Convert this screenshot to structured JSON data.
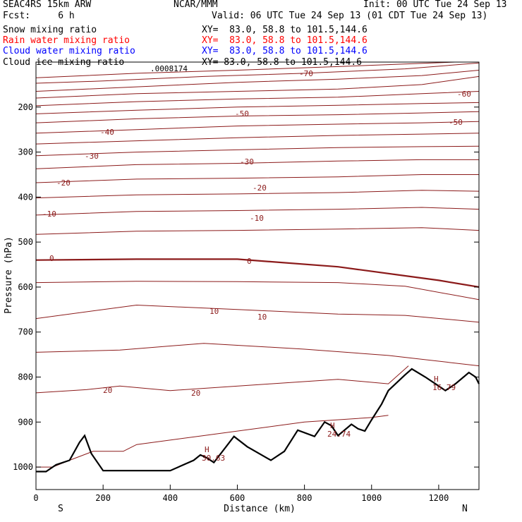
{
  "header": {
    "title": "SEAC4RS 15km ARW",
    "forecast": "Fcst:     6 h",
    "org": "NCAR/MMM",
    "init": "Init: 00 UTC Tue 24 Sep 13",
    "valid": "Valid: 06 UTC Tue 24 Sep 13 (01 CDT Tue 24 Sep 13)"
  },
  "legend": [
    {
      "label": "Snow mixing ratio",
      "xy": "XY=  83.0, 58.8 to 101.5,144.6",
      "color": "#000000"
    },
    {
      "label": "Rain water mixing ratio",
      "xy": "XY=  83.0, 58.8 to 101.5,144.6",
      "color": "#ff0000"
    },
    {
      "label": "Cloud water mixing ratio",
      "xy": "XY=  83.0, 58.8 to 101.5,144.6",
      "color": "#0000ff"
    },
    {
      "label": "Cloud ice mixing ratio",
      "xy": "XY=  83.0, 58.8 to 101.5,144.6",
      "color": "#000000"
    }
  ],
  "chart_data": {
    "type": "line",
    "xlabel": "Distance (km)",
    "ylabel": "Pressure (hPa)",
    "xlim": [
      0,
      1320
    ],
    "ylim": [
      1050,
      100
    ],
    "x_ticks": [
      "0",
      "200",
      "400",
      "600",
      "800",
      "1000",
      "1200"
    ],
    "y_ticks": [
      "200",
      "300",
      "400",
      "500",
      "600",
      "700",
      "800",
      "900",
      "1000"
    ],
    "end_labels": {
      "left": "S",
      "right": "N"
    },
    "contour_color": "#8b1a1a",
    "terrain_color": "#000000",
    "contour_labels": [
      "-70",
      "-60",
      "-50",
      "-50",
      "-40",
      "-30",
      "-30",
      "-20",
      "-20",
      "-10",
      "-10",
      "0",
      "0",
      "10",
      "10",
      "20",
      "20"
    ],
    "annotations": [
      ".0008174",
      "H",
      "30.63",
      "H",
      "24.74",
      "H",
      "16.79"
    ],
    "isotherms": [
      {
        "temp": -75,
        "points": [
          [
            0,
            135
          ],
          [
            300,
            125
          ],
          [
            600,
            118
          ],
          [
            900,
            110
          ],
          [
            1320,
            98
          ]
        ]
      },
      {
        "temp": -70,
        "points": [
          [
            0,
            147
          ],
          [
            200,
            142
          ],
          [
            500,
            132
          ],
          [
            800,
            125
          ],
          [
            1100,
            115
          ],
          [
            1320,
            102
          ]
        ]
      },
      {
        "temp": -65,
        "points": [
          [
            0,
            165
          ],
          [
            300,
            155
          ],
          [
            600,
            145
          ],
          [
            900,
            138
          ],
          [
            1150,
            130
          ],
          [
            1320,
            118
          ]
        ]
      },
      {
        "temp": -60,
        "points": [
          [
            0,
            180
          ],
          [
            300,
            170
          ],
          [
            600,
            165
          ],
          [
            900,
            160
          ],
          [
            1150,
            150
          ],
          [
            1320,
            132
          ]
        ]
      },
      {
        "temp": -55,
        "points": [
          [
            0,
            197
          ],
          [
            300,
            188
          ],
          [
            600,
            182
          ],
          [
            900,
            178
          ],
          [
            1150,
            170
          ],
          [
            1320,
            165
          ]
        ]
      },
      {
        "temp": -50,
        "points": [
          [
            0,
            215
          ],
          [
            300,
            207
          ],
          [
            600,
            200
          ],
          [
            900,
            196
          ],
          [
            1150,
            192
          ],
          [
            1320,
            190
          ]
        ]
      },
      {
        "temp": -45,
        "points": [
          [
            0,
            235
          ],
          [
            300,
            226
          ],
          [
            600,
            220
          ],
          [
            900,
            217
          ],
          [
            1150,
            213
          ],
          [
            1320,
            210
          ]
        ]
      },
      {
        "temp": -40,
        "points": [
          [
            0,
            258
          ],
          [
            300,
            250
          ],
          [
            600,
            242
          ],
          [
            900,
            238
          ],
          [
            1150,
            235
          ],
          [
            1320,
            232
          ]
        ]
      },
      {
        "temp": -35,
        "points": [
          [
            0,
            282
          ],
          [
            300,
            275
          ],
          [
            600,
            268
          ],
          [
            900,
            263
          ],
          [
            1150,
            260
          ],
          [
            1320,
            258
          ]
        ]
      },
      {
        "temp": -30,
        "points": [
          [
            0,
            308
          ],
          [
            300,
            300
          ],
          [
            600,
            295
          ],
          [
            900,
            290
          ],
          [
            1150,
            288
          ],
          [
            1320,
            287
          ]
        ]
      },
      {
        "temp": -25,
        "points": [
          [
            0,
            337
          ],
          [
            300,
            328
          ],
          [
            600,
            325
          ],
          [
            900,
            320
          ],
          [
            1150,
            317
          ],
          [
            1320,
            317
          ]
        ]
      },
      {
        "temp": -20,
        "points": [
          [
            0,
            368
          ],
          [
            300,
            360
          ],
          [
            600,
            358
          ],
          [
            900,
            355
          ],
          [
            1150,
            350
          ],
          [
            1320,
            350
          ]
        ]
      },
      {
        "temp": -15,
        "points": [
          [
            0,
            402
          ],
          [
            300,
            395
          ],
          [
            600,
            393
          ],
          [
            900,
            390
          ],
          [
            1150,
            385
          ],
          [
            1320,
            387
          ]
        ]
      },
      {
        "temp": -10,
        "points": [
          [
            0,
            440
          ],
          [
            300,
            432
          ],
          [
            600,
            430
          ],
          [
            900,
            427
          ],
          [
            1150,
            423
          ],
          [
            1320,
            427
          ]
        ]
      },
      {
        "temp": -5,
        "points": [
          [
            0,
            483
          ],
          [
            300,
            476
          ],
          [
            600,
            474
          ],
          [
            900,
            471
          ],
          [
            1150,
            468
          ],
          [
            1320,
            474
          ]
        ]
      },
      {
        "temp": 0,
        "points": [
          [
            0,
            540
          ],
          [
            300,
            538
          ],
          [
            600,
            538
          ],
          [
            900,
            555
          ],
          [
            1100,
            575
          ],
          [
            1200,
            585
          ],
          [
            1320,
            600
          ]
        ]
      },
      {
        "temp": 5,
        "points": [
          [
            0,
            590
          ],
          [
            300,
            587
          ],
          [
            600,
            588
          ],
          [
            900,
            590
          ],
          [
            1100,
            598
          ],
          [
            1320,
            628
          ]
        ]
      },
      {
        "temp": 10,
        "points": [
          [
            0,
            670
          ],
          [
            300,
            640
          ],
          [
            600,
            650
          ],
          [
            900,
            660
          ],
          [
            1100,
            663
          ],
          [
            1320,
            678
          ]
        ]
      },
      {
        "temp": 15,
        "points": [
          [
            0,
            745
          ],
          [
            250,
            740
          ],
          [
            500,
            725
          ],
          [
            800,
            738
          ],
          [
            1050,
            752
          ],
          [
            1320,
            775
          ]
        ]
      },
      {
        "temp": 20,
        "points": [
          [
            0,
            835
          ],
          [
            150,
            828
          ],
          [
            250,
            820
          ],
          [
            400,
            830
          ],
          [
            700,
            815
          ],
          [
            900,
            805
          ],
          [
            1050,
            815
          ],
          [
            1110,
            775
          ]
        ]
      },
      {
        "temp": 25,
        "points": [
          [
            0,
            1000
          ],
          [
            50,
            1000
          ],
          [
            100,
            985
          ],
          [
            170,
            965
          ],
          [
            260,
            965
          ],
          [
            300,
            950
          ],
          [
            500,
            930
          ],
          [
            800,
            900
          ],
          [
            1000,
            890
          ],
          [
            1050,
            885
          ]
        ]
      }
    ],
    "terrain": [
      [
        0,
        1010
      ],
      [
        30,
        1010
      ],
      [
        60,
        995
      ],
      [
        100,
        985
      ],
      [
        130,
        945
      ],
      [
        145,
        930
      ],
      [
        165,
        970
      ],
      [
        200,
        1008
      ],
      [
        300,
        1008
      ],
      [
        400,
        1008
      ],
      [
        470,
        985
      ],
      [
        490,
        973
      ],
      [
        510,
        980
      ],
      [
        530,
        990
      ],
      [
        590,
        932
      ],
      [
        630,
        955
      ],
      [
        700,
        985
      ],
      [
        740,
        965
      ],
      [
        780,
        918
      ],
      [
        830,
        932
      ],
      [
        860,
        900
      ],
      [
        880,
        908
      ],
      [
        900,
        930
      ],
      [
        940,
        905
      ],
      [
        960,
        915
      ],
      [
        980,
        920
      ],
      [
        1000,
        895
      ],
      [
        1030,
        860
      ],
      [
        1050,
        830
      ],
      [
        1100,
        795
      ],
      [
        1120,
        782
      ],
      [
        1160,
        800
      ],
      [
        1190,
        815
      ],
      [
        1220,
        830
      ],
      [
        1250,
        815
      ],
      [
        1290,
        790
      ],
      [
        1310,
        800
      ],
      [
        1320,
        815
      ]
    ]
  }
}
